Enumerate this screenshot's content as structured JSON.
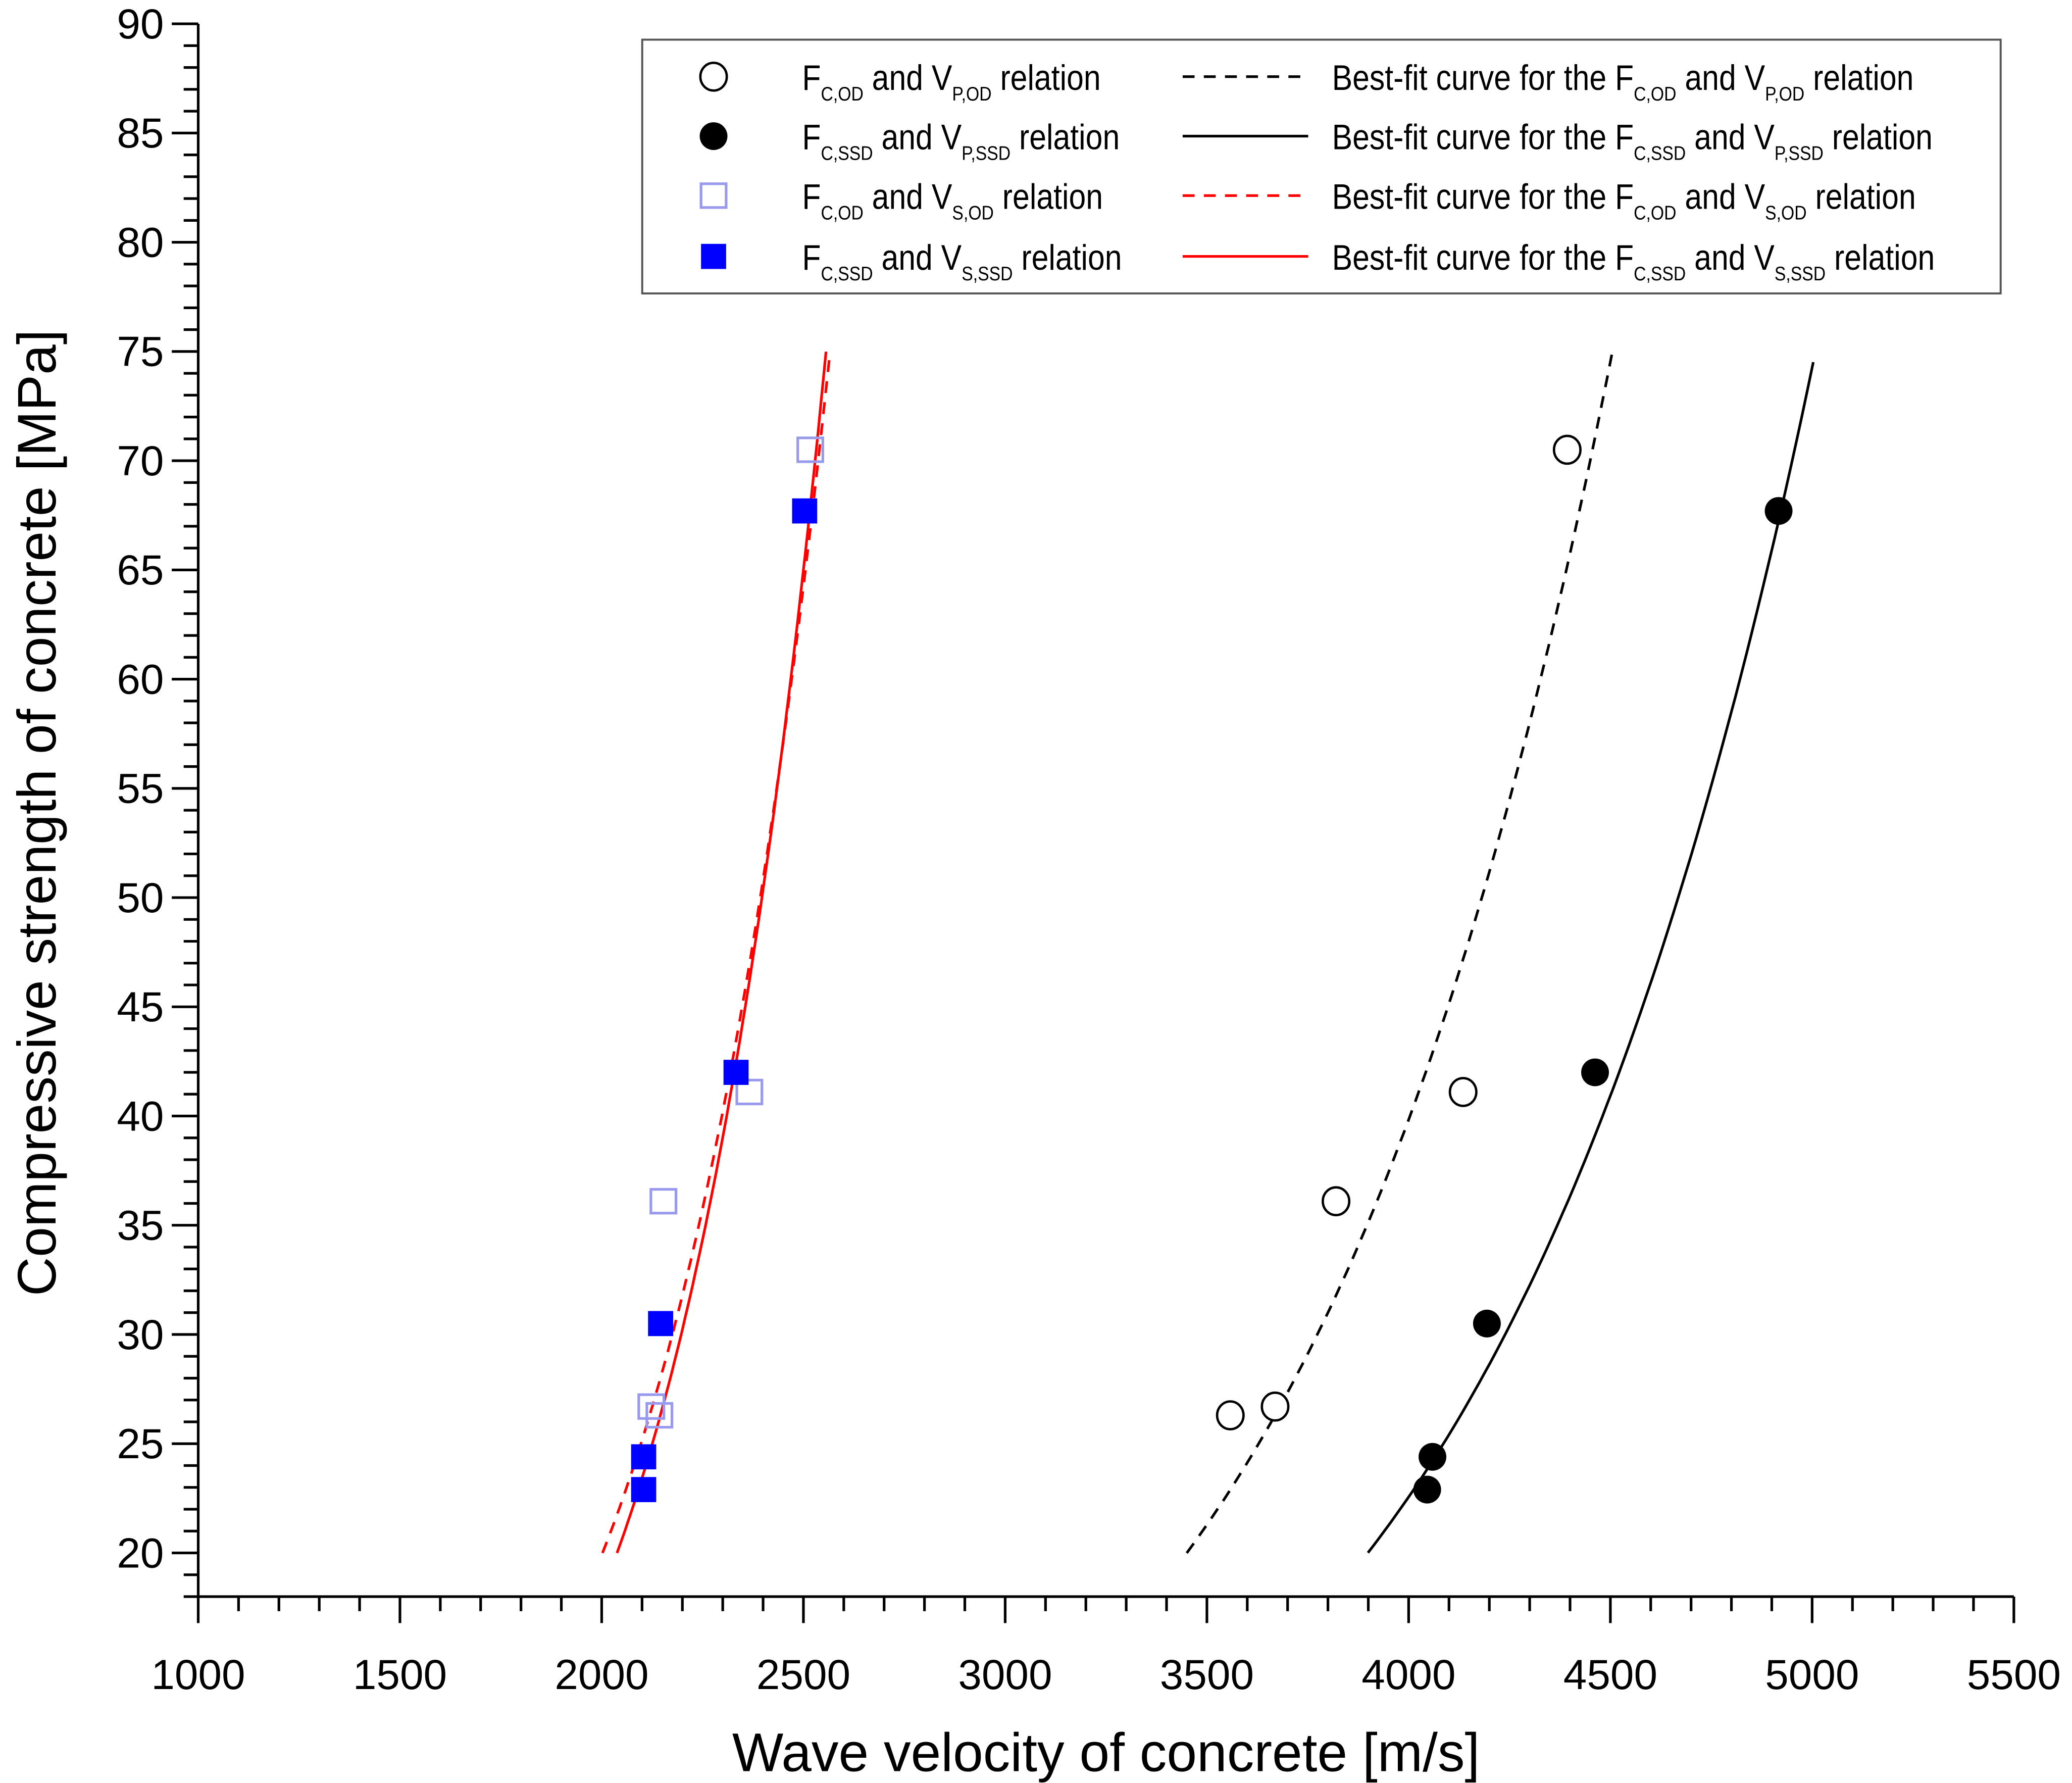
{
  "chart_data": {
    "type": "scatter",
    "xlabel": "Wave velocity of concrete [m/s]",
    "ylabel": "Compressive strength of concrete [MPa]",
    "xlim": [
      1000,
      5500
    ],
    "ylim": [
      18,
      90
    ],
    "xticks": [
      1000,
      1500,
      2000,
      2500,
      3000,
      3500,
      4000,
      4500,
      5000,
      5500
    ],
    "yticks": [
      20,
      25,
      30,
      35,
      40,
      45,
      50,
      55,
      60,
      65,
      70,
      75,
      80,
      85,
      90
    ],
    "grid": false,
    "legend_placement": "top-right",
    "series": [
      {
        "name": [
          {
            "t": "F"
          },
          {
            "t": "C,OD",
            "sub": true
          },
          {
            "t": " and V"
          },
          {
            "t": "P,OD",
            "sub": true
          },
          {
            "t": " relation"
          }
        ],
        "marker": "open-circle",
        "color": "#000000",
        "points": [
          [
            3558,
            26.3
          ],
          [
            3669,
            26.7
          ],
          [
            3820,
            36.1
          ],
          [
            4135,
            41.1
          ],
          [
            4393,
            70.5
          ]
        ]
      },
      {
        "name": [
          {
            "t": "F"
          },
          {
            "t": "C,SSD",
            "sub": true
          },
          {
            "t": " and V"
          },
          {
            "t": "P,SSD",
            "sub": true
          },
          {
            "t": " relation"
          }
        ],
        "marker": "filled-circle",
        "color": "#000000",
        "points": [
          [
            4046,
            22.9
          ],
          [
            4059,
            24.4
          ],
          [
            4194,
            30.5
          ],
          [
            4462,
            42.0
          ],
          [
            4917,
            67.7
          ]
        ]
      },
      {
        "name": [
          {
            "t": "F"
          },
          {
            "t": "C,OD",
            "sub": true
          },
          {
            "t": " and V"
          },
          {
            "t": "S,OD",
            "sub": true
          },
          {
            "t": " relation"
          }
        ],
        "marker": "open-square",
        "color": "#9999ee",
        "points": [
          [
            2123,
            26.7
          ],
          [
            2143,
            26.3
          ],
          [
            2153,
            36.1
          ],
          [
            2366,
            41.1
          ],
          [
            2517,
            70.5
          ]
        ]
      },
      {
        "name": [
          {
            "t": "F"
          },
          {
            "t": "C,SSD",
            "sub": true
          },
          {
            "t": " and V"
          },
          {
            "t": "S,SSD",
            "sub": true
          },
          {
            "t": " relation"
          }
        ],
        "marker": "filled-square",
        "color": "#0000ff",
        "points": [
          [
            2104,
            24.4
          ],
          [
            2104,
            22.9
          ],
          [
            2146,
            30.5
          ],
          [
            2333,
            42.0
          ],
          [
            2503,
            67.7
          ]
        ]
      }
    ],
    "fits": [
      {
        "name": [
          {
            "t": "Best-fit curve for the F"
          },
          {
            "t": "C,OD",
            "sub": true
          },
          {
            "t": " and V"
          },
          {
            "t": "P,OD",
            "sub": true
          },
          {
            "t": " relation"
          }
        ],
        "style": "dashed",
        "color": "#000000",
        "model": "exponential",
        "a": 0.2652,
        "b": 0.001253,
        "x_range": [
          3450,
          4505
        ]
      },
      {
        "name": [
          {
            "t": "Best-fit curve for the F"
          },
          {
            "t": "C,SSD",
            "sub": true
          },
          {
            "t": " and V"
          },
          {
            "t": "P,SSD",
            "sub": true
          },
          {
            "t": " relation"
          }
        ],
        "style": "solid",
        "color": "#000000",
        "model": "exponential",
        "a": 0.1925,
        "b": 0.001191,
        "x_range": [
          3899,
          5003
        ]
      },
      {
        "name": [
          {
            "t": "Best-fit curve for the F"
          },
          {
            "t": "C,OD",
            "sub": true
          },
          {
            "t": " and V"
          },
          {
            "t": "S,OD",
            "sub": true
          },
          {
            "t": " relation"
          }
        ],
        "style": "dashed",
        "color": "#ff0000",
        "model": "exponential",
        "a": 0.1832,
        "b": 0.002344,
        "x_range": [
          2002,
          2566
        ]
      },
      {
        "name": [
          {
            "t": "Best-fit curve for the F"
          },
          {
            "t": "C,SSD",
            "sub": true
          },
          {
            "t": " and V"
          },
          {
            "t": "S,SSD",
            "sub": true
          },
          {
            "t": " relation"
          }
        ],
        "style": "solid",
        "color": "#ff0000",
        "model": "exponential",
        "a": 0.1102,
        "b": 0.002552,
        "x_range": [
          2038,
          2556
        ]
      }
    ]
  }
}
